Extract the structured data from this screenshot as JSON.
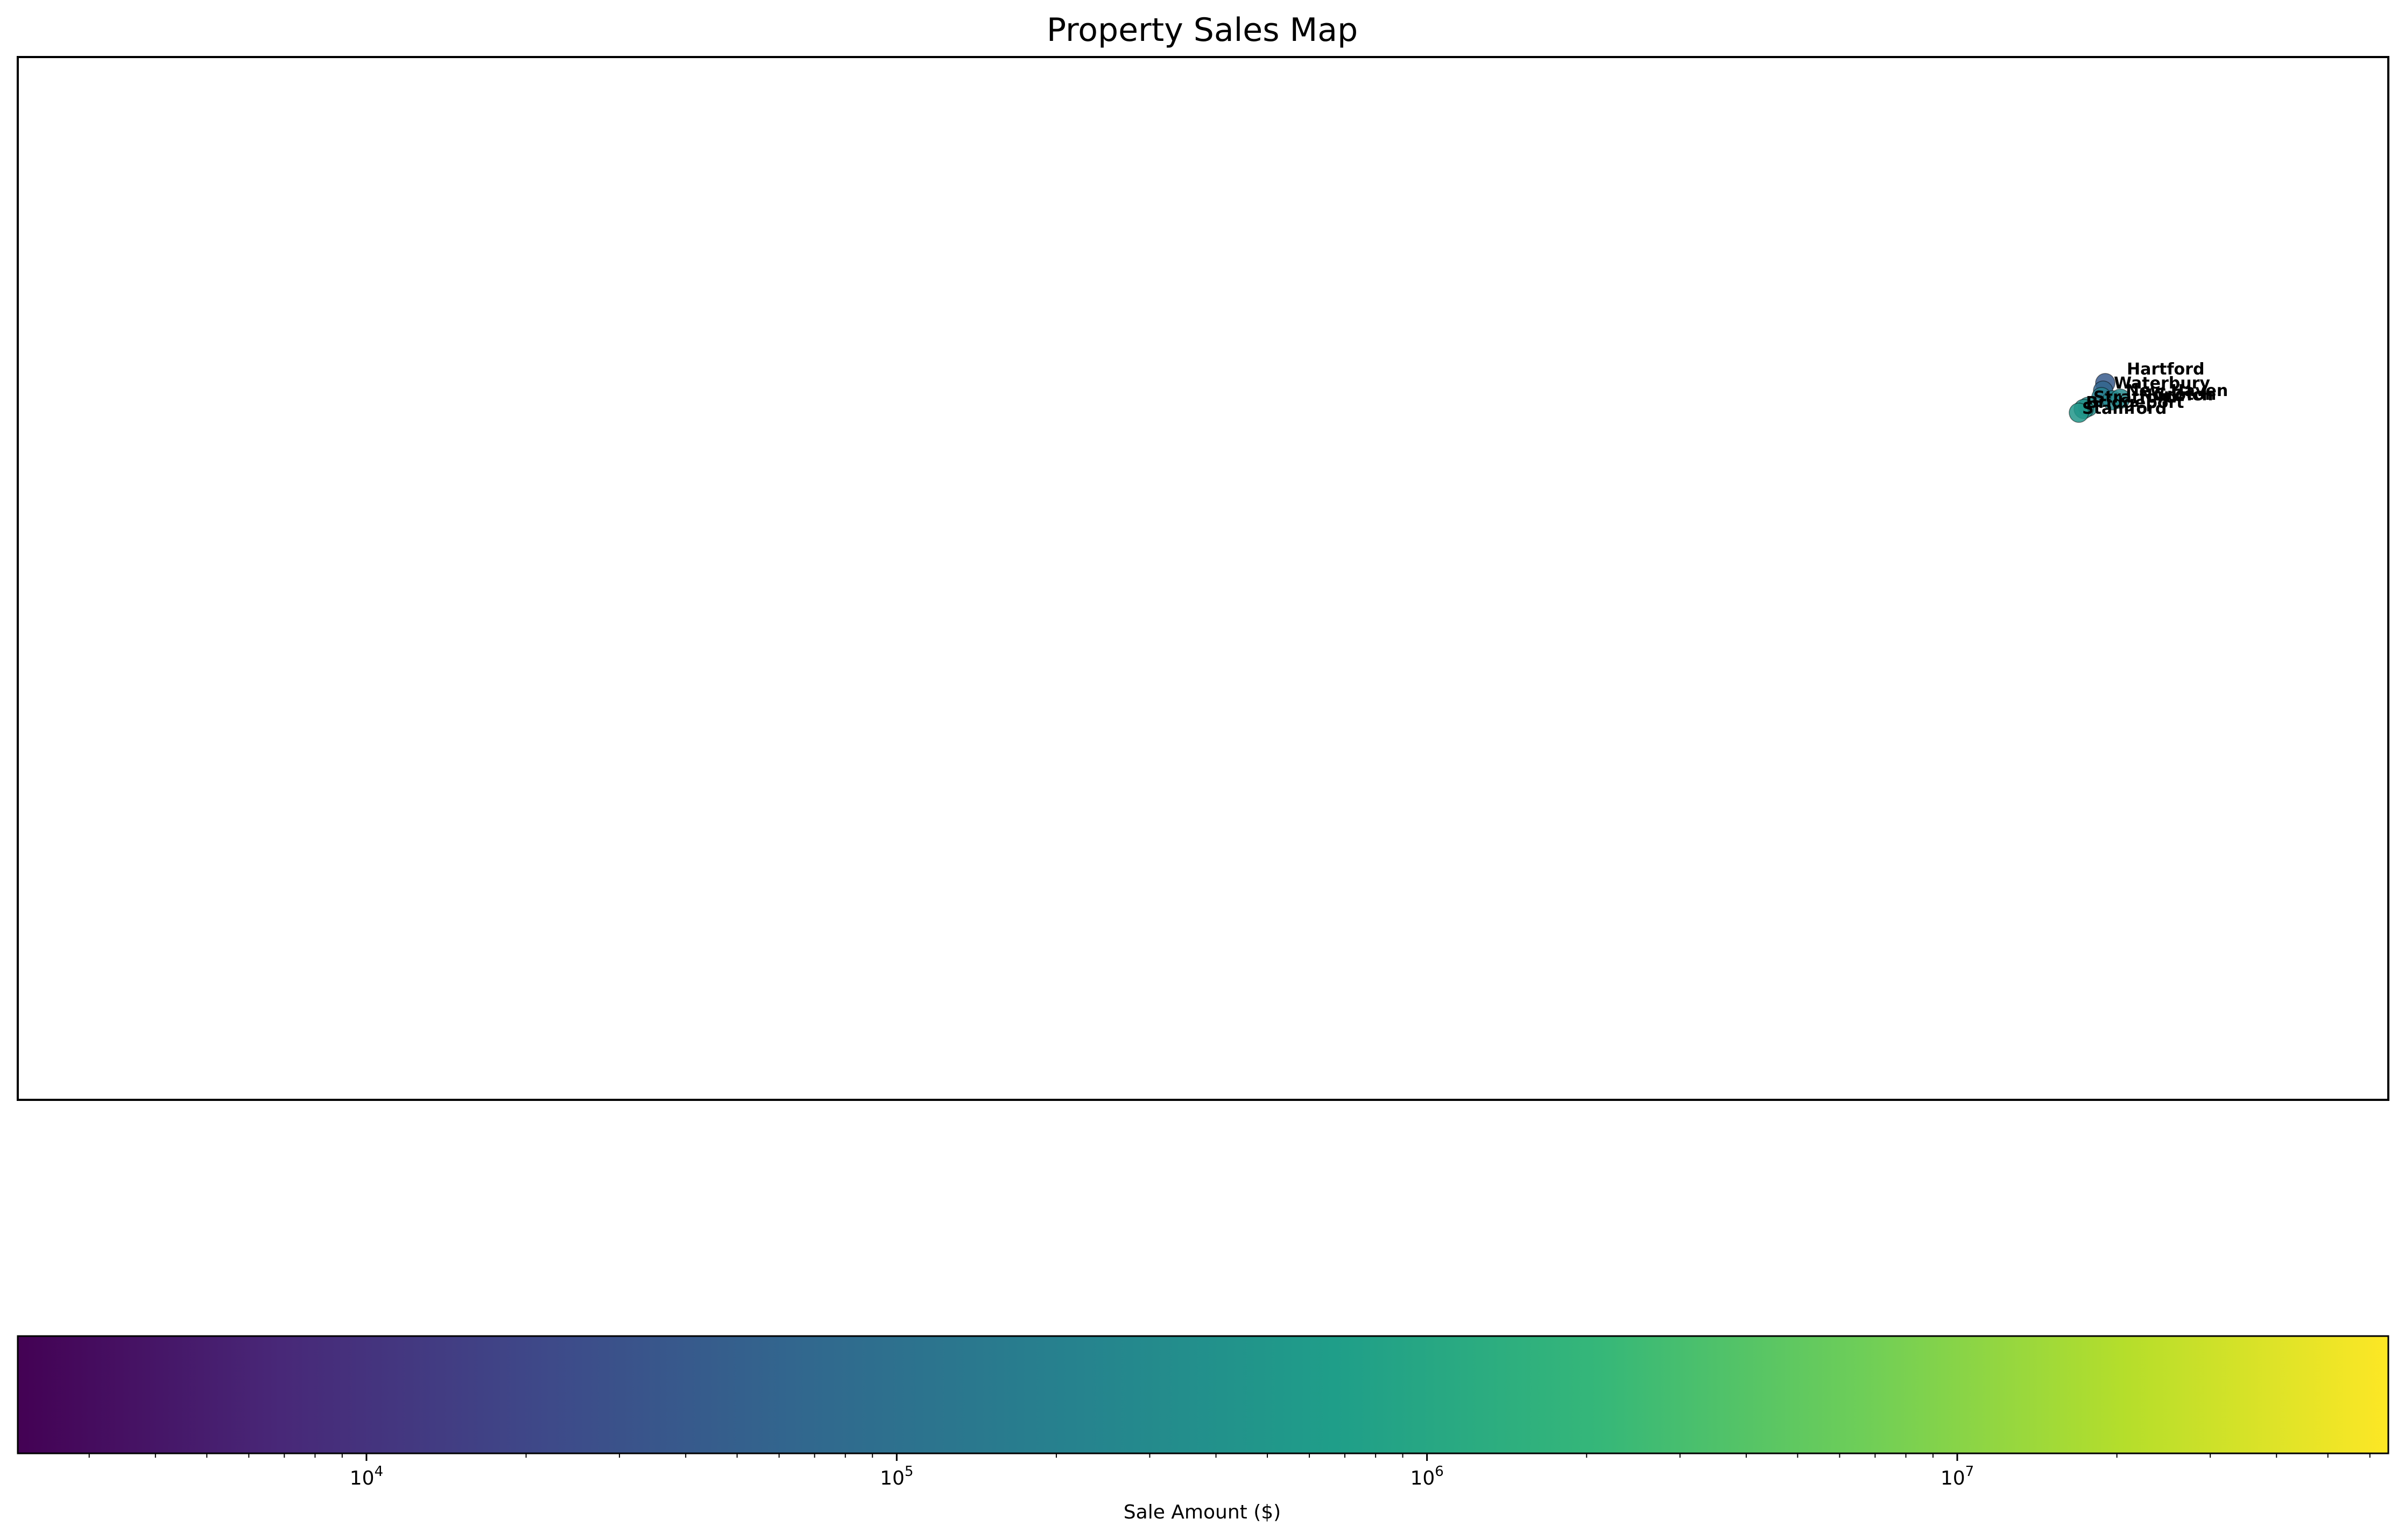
{
  "chart_data": {
    "type": "scatter",
    "title": "Property Sales Map",
    "xlabel": "",
    "ylabel": "",
    "axes_ticks_visible": false,
    "grid": false,
    "legend": "none",
    "points": [
      {
        "label": "Hartford",
        "value": 40000
      },
      {
        "label": "Waterbury",
        "value": 60000
      },
      {
        "label": "New Haven",
        "value": 200000
      },
      {
        "label": "Norwich",
        "value": 250000
      },
      {
        "label": "Groton",
        "value": 300000
      },
      {
        "label": "Stratford",
        "value": 350000
      },
      {
        "label": "Bridgeport",
        "value": 400000
      },
      {
        "label": "Stamford",
        "value": 500000
      }
    ],
    "colorbar": {
      "label": "Sale Amount ($)",
      "scale": "log",
      "colormap": "viridis",
      "range": [
        2200,
        65000000
      ],
      "tick_labels": [
        {
          "base": "10",
          "exp": "4"
        },
        {
          "base": "10",
          "exp": "5"
        },
        {
          "base": "10",
          "exp": "6"
        },
        {
          "base": "10",
          "exp": "7"
        }
      ],
      "colors": [
        "#440154",
        "#482878",
        "#3e4989",
        "#31688e",
        "#26828e",
        "#1f9e89",
        "#35b779",
        "#6ece58",
        "#b5de2b",
        "#fde725"
      ]
    }
  }
}
